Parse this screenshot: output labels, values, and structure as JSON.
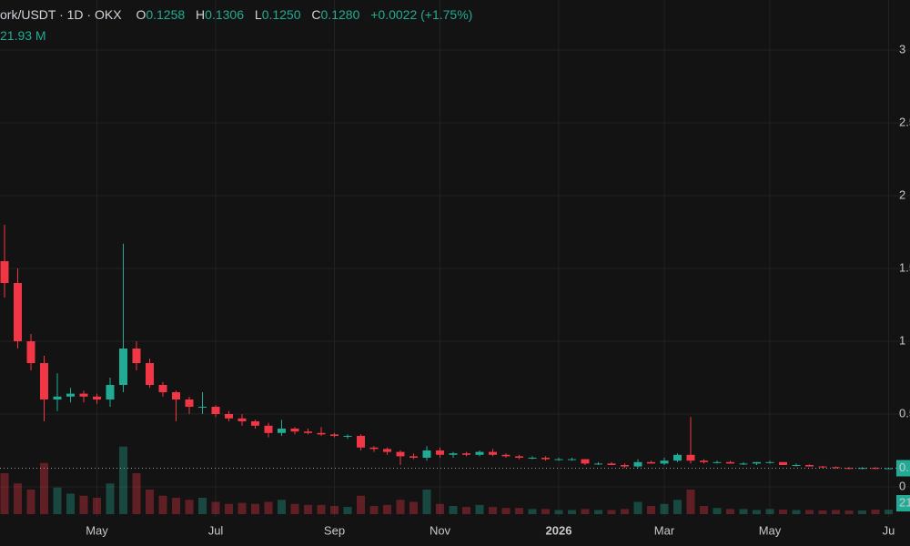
{
  "chart_data": {
    "type": "candlestick",
    "header": {
      "symbol": "ork/USDT · 1D · OKX",
      "open_label": "O",
      "open": "0.1258",
      "high_label": "H",
      "high": "0.1306",
      "low_label": "L",
      "low": "0.1250",
      "close_label": "C",
      "close": "0.1280",
      "change": "+0.0022 (+1.75%)",
      "volume": "21.93 M"
    },
    "categories": [
      null,
      null,
      null,
      null,
      null,
      null,
      null,
      "May",
      null,
      null,
      null,
      null,
      null,
      null,
      null,
      null,
      "Jul",
      null,
      null,
      null,
      null,
      null,
      null,
      null,
      null,
      "Sep",
      null,
      null,
      null,
      null,
      null,
      null,
      null,
      "Nov",
      null,
      null,
      null,
      null,
      null,
      null,
      null,
      null,
      "2026",
      null,
      null,
      null,
      null,
      null,
      null,
      null,
      "Mar",
      null,
      null,
      null,
      null,
      null,
      null,
      null,
      "May",
      null,
      null,
      null,
      null,
      null,
      null,
      null,
      null,
      "Ju"
    ],
    "open": [
      1.55,
      1.4,
      1.0,
      0.85,
      0.6,
      0.62,
      0.64,
      0.62,
      0.6,
      0.7,
      0.95,
      0.85,
      0.7,
      0.65,
      0.6,
      0.55,
      0.55,
      0.5,
      0.47,
      0.45,
      0.42,
      0.37,
      0.4,
      0.38,
      0.37,
      0.36,
      0.35,
      0.35,
      0.27,
      0.26,
      0.24,
      0.21,
      0.2,
      0.25,
      0.22,
      0.23,
      0.22,
      0.24,
      0.22,
      0.21,
      0.2,
      0.2,
      0.19,
      0.19,
      0.19,
      0.16,
      0.16,
      0.15,
      0.14,
      0.17,
      0.16,
      0.18,
      0.22,
      0.18,
      0.17,
      0.17,
      0.16,
      0.16,
      0.17,
      0.17,
      0.15,
      0.15,
      0.14,
      0.135,
      0.13,
      0.125,
      0.13,
      0.1258
    ],
    "high": [
      1.8,
      1.5,
      1.05,
      0.9,
      0.78,
      0.68,
      0.66,
      0.64,
      0.75,
      1.67,
      1.0,
      0.88,
      0.72,
      0.66,
      0.62,
      0.65,
      0.56,
      0.52,
      0.5,
      0.46,
      0.44,
      0.46,
      0.41,
      0.4,
      0.41,
      0.37,
      0.36,
      0.36,
      0.28,
      0.27,
      0.25,
      0.23,
      0.28,
      0.27,
      0.24,
      0.24,
      0.25,
      0.26,
      0.23,
      0.22,
      0.21,
      0.21,
      0.2,
      0.2,
      0.19,
      0.17,
      0.17,
      0.16,
      0.19,
      0.18,
      0.2,
      0.23,
      0.48,
      0.19,
      0.18,
      0.18,
      0.17,
      0.17,
      0.18,
      0.17,
      0.16,
      0.155,
      0.145,
      0.14,
      0.135,
      0.135,
      0.135,
      0.1306
    ],
    "low": [
      1.3,
      0.95,
      0.8,
      0.45,
      0.52,
      0.58,
      0.58,
      0.57,
      0.55,
      0.65,
      0.8,
      0.68,
      0.62,
      0.45,
      0.5,
      0.5,
      0.48,
      0.45,
      0.42,
      0.4,
      0.34,
      0.35,
      0.36,
      0.36,
      0.35,
      0.34,
      0.33,
      0.25,
      0.24,
      0.22,
      0.15,
      0.19,
      0.18,
      0.2,
      0.2,
      0.21,
      0.21,
      0.21,
      0.2,
      0.19,
      0.19,
      0.18,
      0.18,
      0.18,
      0.15,
      0.15,
      0.15,
      0.13,
      0.13,
      0.16,
      0.15,
      0.17,
      0.16,
      0.16,
      0.16,
      0.16,
      0.15,
      0.15,
      0.16,
      0.15,
      0.14,
      0.14,
      0.13,
      0.125,
      0.12,
      0.12,
      0.12,
      0.125
    ],
    "close": [
      1.4,
      1.0,
      0.85,
      0.6,
      0.62,
      0.64,
      0.62,
      0.6,
      0.7,
      0.95,
      0.85,
      0.7,
      0.65,
      0.6,
      0.55,
      0.55,
      0.5,
      0.47,
      0.45,
      0.42,
      0.37,
      0.4,
      0.38,
      0.37,
      0.36,
      0.35,
      0.35,
      0.27,
      0.26,
      0.24,
      0.21,
      0.2,
      0.25,
      0.22,
      0.23,
      0.22,
      0.24,
      0.22,
      0.21,
      0.2,
      0.2,
      0.19,
      0.19,
      0.19,
      0.16,
      0.16,
      0.15,
      0.14,
      0.17,
      0.16,
      0.18,
      0.22,
      0.18,
      0.17,
      0.17,
      0.16,
      0.16,
      0.17,
      0.17,
      0.15,
      0.15,
      0.14,
      0.135,
      0.13,
      0.125,
      0.13,
      0.128,
      0.128
    ],
    "volume": [
      200,
      150,
      120,
      250,
      130,
      100,
      90,
      80,
      150,
      330,
      200,
      120,
      90,
      80,
      70,
      80,
      60,
      50,
      55,
      50,
      60,
      70,
      50,
      45,
      45,
      40,
      35,
      90,
      40,
      45,
      70,
      60,
      120,
      50,
      40,
      35,
      45,
      35,
      30,
      30,
      25,
      25,
      20,
      20,
      25,
      20,
      20,
      25,
      60,
      40,
      50,
      70,
      120,
      40,
      30,
      25,
      25,
      20,
      25,
      22,
      20,
      20,
      18,
      20,
      18,
      18,
      22,
      21.93
    ],
    "ylim": [
      -0.1875,
      3.34375
    ],
    "yticks": [
      0,
      0.5,
      1,
      1.5,
      2,
      2.5,
      3
    ],
    "vlim": [
      0,
      400
    ],
    "up_color": "#22ab94",
    "down_color": "#f23645",
    "grid": true
  }
}
